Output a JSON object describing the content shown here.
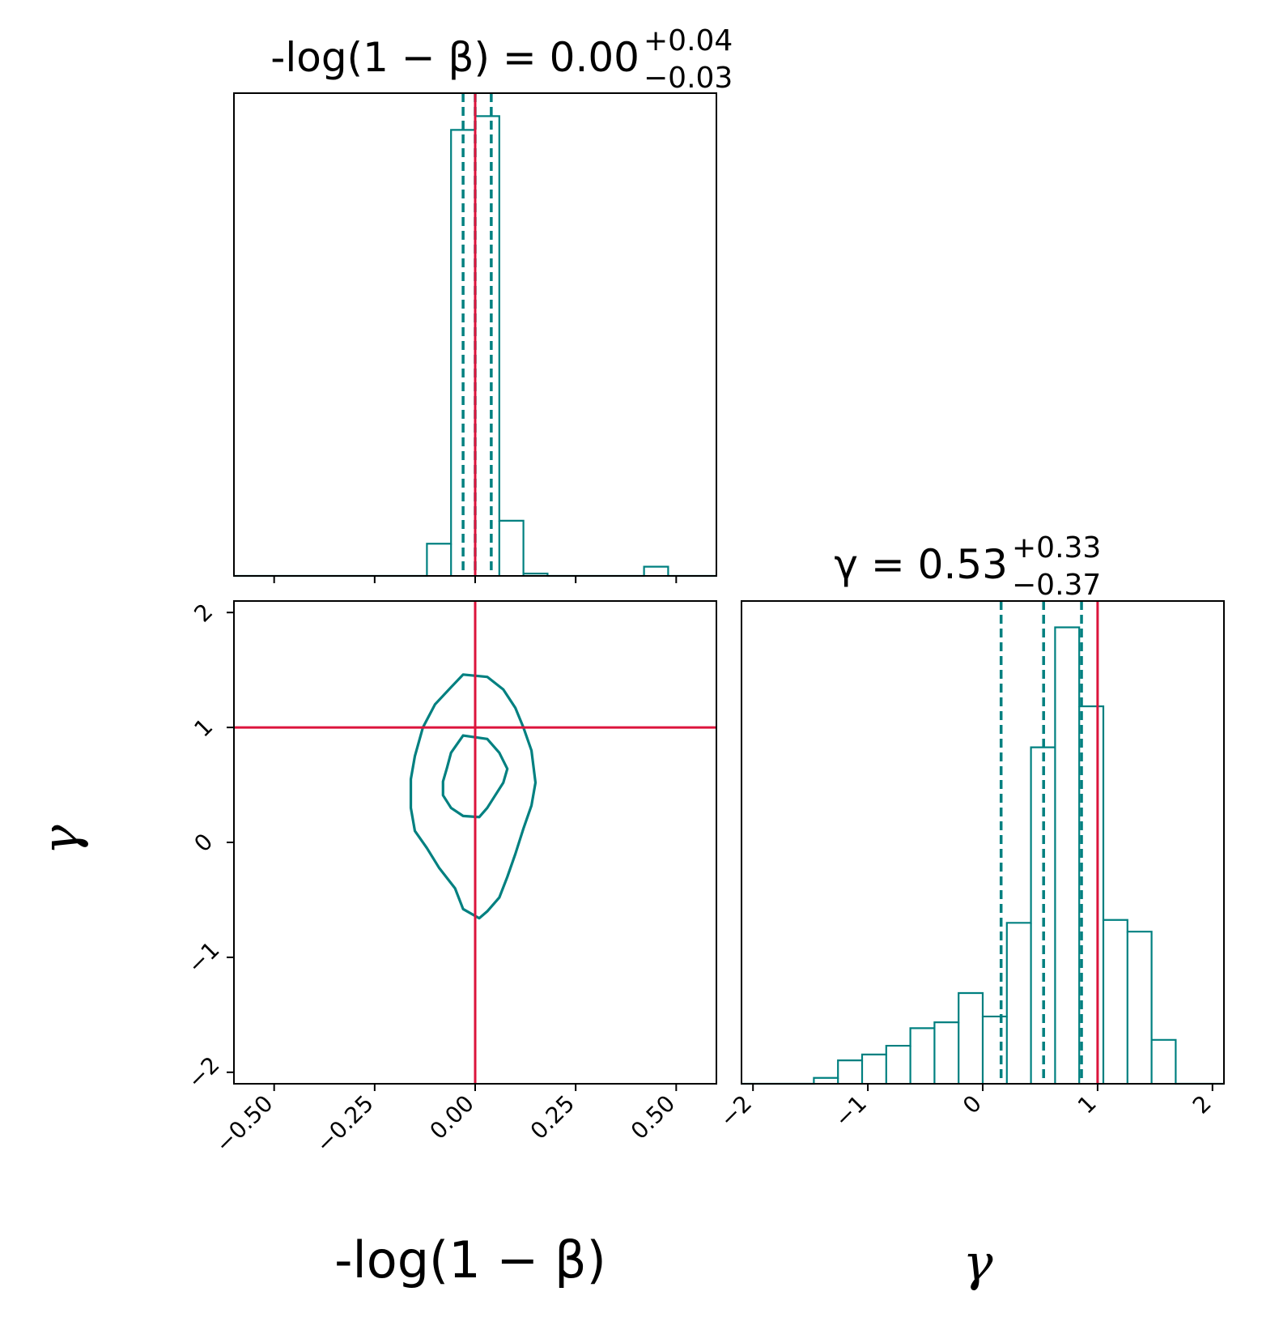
{
  "colors": {
    "posterior": "#008080",
    "truth": "#dc143c",
    "frame": "#000000",
    "background": "#ffffff"
  },
  "chart_data": {
    "type": "corner",
    "parameters": [
      {
        "key": "beta",
        "label": "-log(1 − β)",
        "title": "-log(1 − β) = 0.00",
        "title_sup": "+0.04",
        "title_sub": "−0.03",
        "median": 0.0,
        "err_plus": 0.04,
        "err_minus": 0.03,
        "quantiles": [
          -0.03,
          0.0,
          0.04
        ],
        "truth": 0.0,
        "range": [
          -0.6,
          0.6
        ],
        "ticks": [
          -0.5,
          -0.25,
          0.0,
          0.25,
          0.5
        ],
        "tick_labels": [
          "−0.50",
          "−0.25",
          "0.00",
          "0.25",
          "0.50"
        ]
      },
      {
        "key": "gamma",
        "label": "γ",
        "title": "γ = 0.53",
        "title_sup": "+0.33",
        "title_sub": "−0.37",
        "median": 0.53,
        "err_plus": 0.33,
        "err_minus": 0.37,
        "quantiles": [
          0.16,
          0.53,
          0.86
        ],
        "truth": 1.0,
        "range": [
          -2.1,
          2.1
        ],
        "ticks": [
          -2,
          -1,
          0,
          1,
          2
        ],
        "tick_labels": [
          "−2",
          "−1",
          "0",
          "1",
          "2"
        ]
      }
    ],
    "hist_beta": {
      "edges": [
        -0.6,
        -0.54,
        -0.48,
        -0.42,
        -0.36,
        -0.3,
        -0.24,
        -0.18,
        -0.12,
        -0.06,
        0.0,
        0.06,
        0.12,
        0.18,
        0.24,
        0.3,
        0.36,
        0.42,
        0.48,
        0.54,
        0.6
      ],
      "counts": [
        0,
        0,
        0,
        0,
        0,
        0,
        0,
        0,
        0.07,
        0.97,
        1.0,
        0.12,
        0.005,
        0,
        0,
        0,
        0,
        0.02,
        0,
        0
      ],
      "ymax": 1.05
    },
    "hist_gamma": {
      "edges": [
        -2.1,
        -1.89,
        -1.68,
        -1.47,
        -1.26,
        -1.05,
        -0.84,
        -0.63,
        -0.42,
        -0.21,
        0.0,
        0.21,
        0.42,
        0.63,
        0.84,
        1.05,
        1.26,
        1.47,
        1.68,
        1.89,
        2.1
      ],
      "counts": [
        0,
        0,
        0,
        0.02,
        0.08,
        0.1,
        0.13,
        0.19,
        0.21,
        0.31,
        0.23,
        0.55,
        1.15,
        1.56,
        1.29,
        0.56,
        0.52,
        0.15,
        0,
        0
      ],
      "ymax": 1.65
    },
    "contours": [
      {
        "level": "inner",
        "points": [
          [
            -0.03,
            0.93
          ],
          [
            0.03,
            0.9
          ],
          [
            0.06,
            0.78
          ],
          [
            0.08,
            0.64
          ],
          [
            0.07,
            0.52
          ],
          [
            0.05,
            0.41
          ],
          [
            0.03,
            0.3
          ],
          [
            0.01,
            0.22
          ],
          [
            -0.03,
            0.23
          ],
          [
            -0.06,
            0.3
          ],
          [
            -0.08,
            0.41
          ],
          [
            -0.08,
            0.53
          ],
          [
            -0.07,
            0.65
          ],
          [
            -0.06,
            0.78
          ],
          [
            -0.03,
            0.93
          ]
        ]
      },
      {
        "level": "outer",
        "points": [
          [
            -0.03,
            1.46
          ],
          [
            0.03,
            1.44
          ],
          [
            0.07,
            1.33
          ],
          [
            0.1,
            1.17
          ],
          [
            0.12,
            1.0
          ],
          [
            0.14,
            0.8
          ],
          [
            0.15,
            0.52
          ],
          [
            0.14,
            0.32
          ],
          [
            0.12,
            0.12
          ],
          [
            0.1,
            -0.1
          ],
          [
            0.08,
            -0.3
          ],
          [
            0.06,
            -0.48
          ],
          [
            0.03,
            -0.6
          ],
          [
            0.01,
            -0.66
          ],
          [
            -0.03,
            -0.58
          ],
          [
            -0.05,
            -0.4
          ],
          [
            -0.09,
            -0.22
          ],
          [
            -0.12,
            -0.05
          ],
          [
            -0.15,
            0.1
          ],
          [
            -0.16,
            0.3
          ],
          [
            -0.16,
            0.55
          ],
          [
            -0.15,
            0.75
          ],
          [
            -0.13,
            1.0
          ],
          [
            -0.1,
            1.2
          ],
          [
            -0.06,
            1.35
          ],
          [
            -0.03,
            1.46
          ]
        ]
      }
    ],
    "truth": {
      "beta": 0.0,
      "gamma": 1.0
    },
    "grid": false
  }
}
